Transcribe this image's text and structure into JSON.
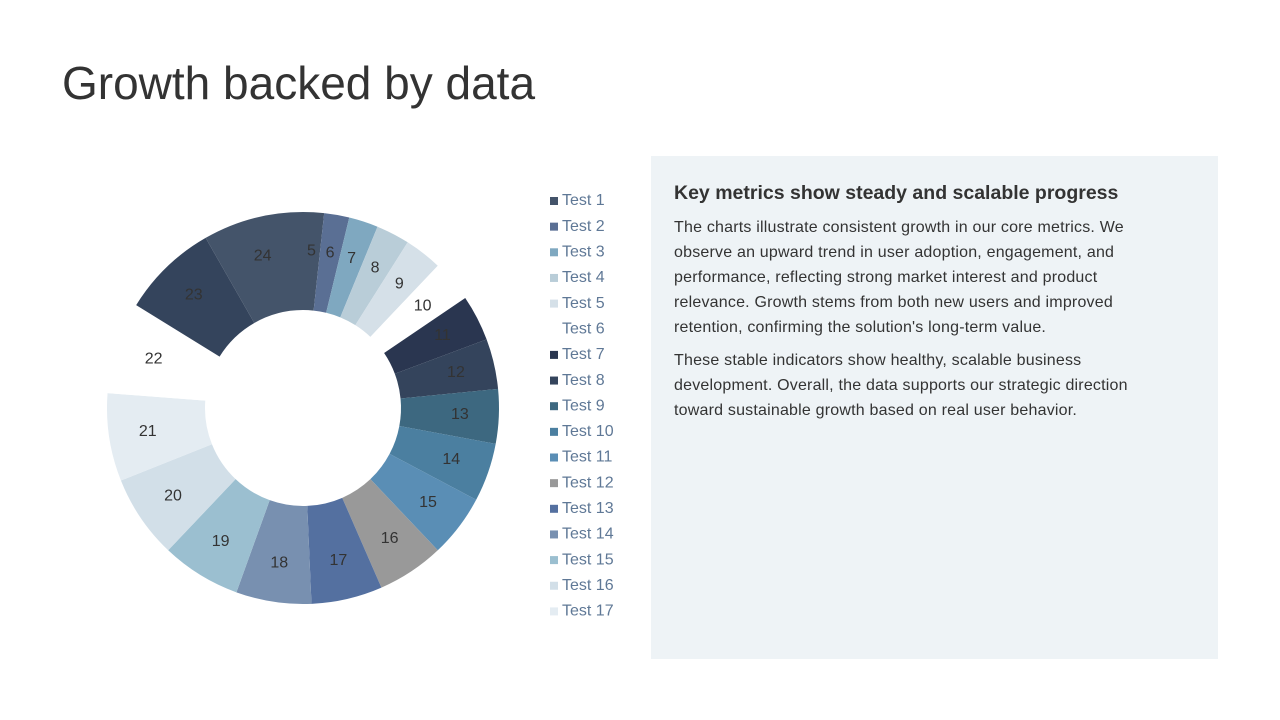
{
  "chart_data": {
    "type": "donut",
    "title": "Growth backed by data",
    "categories": [
      "Test 1",
      "Test 2",
      "Test 3",
      "Test 4",
      "Test 5",
      "Test 6",
      "Test 7",
      "Test 8",
      "Test 9",
      "Test 10",
      "Test 11",
      "Test 12",
      "Test 13",
      "Test 14",
      "Test 15",
      "Test 16",
      "Test 17",
      null,
      null,
      null
    ],
    "values": [
      5,
      6,
      7,
      8,
      9,
      10,
      11,
      12,
      13,
      14,
      15,
      16,
      17,
      18,
      19,
      20,
      21,
      22,
      23,
      24
    ],
    "colors": [
      "#44546a",
      "#5a6f94",
      "#7fa8c0",
      "#b9cdd8",
      "#d5e0e8",
      "#ffffff",
      "#2a3650",
      "#34445c",
      "#3d6880",
      "#4b7fa0",
      "#5a8eb5",
      "#999999",
      "#5470a0",
      "#7890b0",
      "#9bbfd0",
      "#d2dfe8",
      "#e4ecf2",
      "#ffffff",
      "#34445c",
      "#44546a"
    ]
  },
  "panel": {
    "heading": "Key metrics show steady and scalable progress",
    "paragraphs": [
      "The charts illustrate consistent growth in our core metrics. We observe an upward trend in user adoption, engagement, and performance, reflecting strong market interest and product relevance. Growth stems from both new users and improved retention, confirming the solution's long-term value.",
      "These stable indicators show healthy, scalable business development. Overall, the data supports our strategic direction toward sustainable growth based on real user behavior."
    ]
  }
}
